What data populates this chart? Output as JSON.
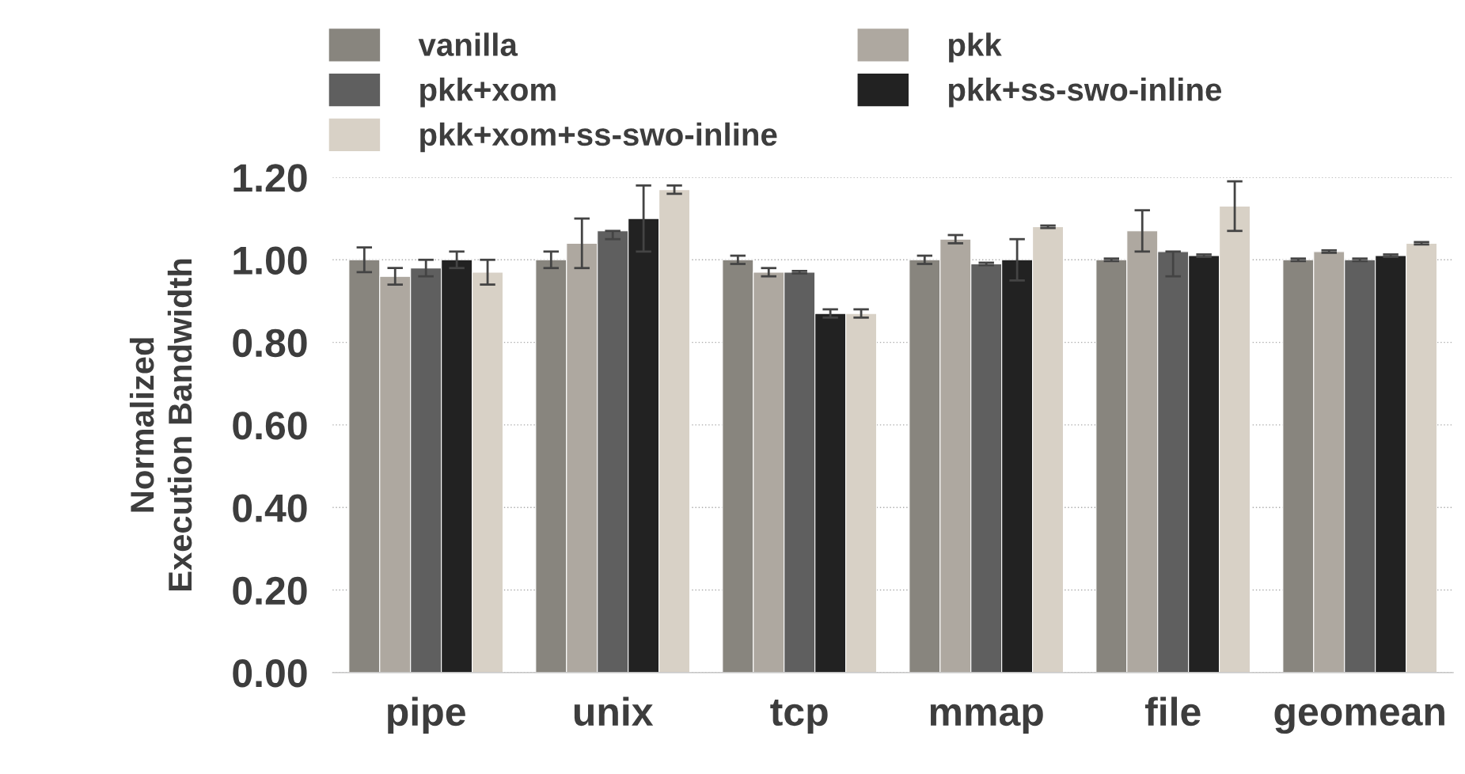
{
  "chart_data": {
    "type": "bar",
    "ylabel": "Normalized\nExecution Bandwidth",
    "categories": [
      "pipe",
      "unix",
      "tcp",
      "mmap",
      "file",
      "geomean"
    ],
    "series": [
      {
        "name": "vanilla",
        "color": "#88857e",
        "values": [
          1.0,
          1.0,
          1.0,
          1.0,
          1.0,
          1.0
        ],
        "errors": [
          0.03,
          0.02,
          0.01,
          0.01,
          0.003,
          0.003
        ]
      },
      {
        "name": "pkk",
        "color": "#aea8a0",
        "values": [
          0.96,
          1.04,
          0.97,
          1.05,
          1.07,
          1.02
        ],
        "errors": [
          0.02,
          0.06,
          0.01,
          0.01,
          0.05,
          0.003
        ]
      },
      {
        "name": "pkk+xom",
        "color": "#5f5f5f",
        "values": [
          0.98,
          1.07,
          0.97,
          0.99,
          1.02,
          1.0
        ],
        "errors": [
          0.02,
          [
            1.05,
            1.07
          ],
          0.003,
          0.003,
          [
            0.96,
            1.02
          ],
          0.003
        ]
      },
      {
        "name": "pkk+ss-swo-inline",
        "color": "#222222",
        "values": [
          1.0,
          1.1,
          0.87,
          1.0,
          1.01,
          1.01
        ],
        "errors": [
          0.02,
          0.08,
          0.01,
          0.05,
          0.003,
          0.003
        ]
      },
      {
        "name": "pkk+xom+ss-swo-inline",
        "color": "#d8d1c6",
        "values": [
          0.97,
          1.17,
          0.87,
          1.08,
          1.13,
          1.04
        ],
        "errors": [
          0.03,
          0.01,
          0.01,
          0.003,
          0.06,
          0.003
        ]
      }
    ],
    "ylim": [
      0,
      1.2
    ],
    "yticks": [
      {
        "value": 0,
        "label": "0.00"
      },
      {
        "value": 0.2,
        "label": "0.20"
      },
      {
        "value": 0.4,
        "label": "0.40"
      },
      {
        "value": 0.6,
        "label": "0.60"
      },
      {
        "value": 0.8,
        "label": "0.80"
      },
      {
        "value": 1.0,
        "label": "1.00"
      },
      {
        "value": 1.2,
        "label": "1.20"
      }
    ],
    "grid": "y",
    "legend": "top"
  }
}
